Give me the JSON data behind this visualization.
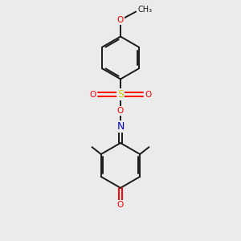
{
  "background_color": "#ebebeb",
  "bond_color": "#1a1a1a",
  "atom_colors": {
    "O": "#ff0000",
    "N": "#0000cc",
    "S": "#cccc00",
    "C": "#1a1a1a"
  },
  "figsize": [
    3.0,
    3.0
  ],
  "dpi": 100,
  "lw": 1.4,
  "fs": 7.5
}
